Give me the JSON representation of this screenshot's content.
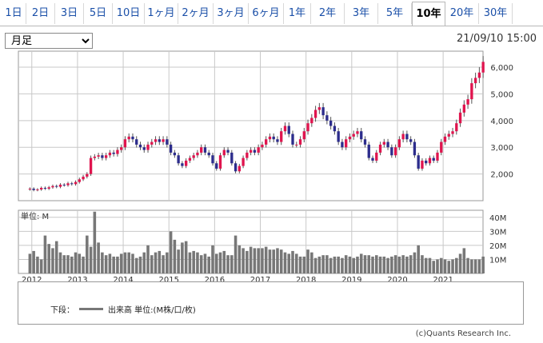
{
  "tabs": [
    "1日",
    "2日",
    "3日",
    "5日",
    "10日",
    "1ヶ月",
    "2ヶ月",
    "3ヶ月",
    "6ヶ月",
    "1年",
    "2年",
    "3年",
    "5年",
    "10年",
    "20年",
    "30年"
  ],
  "active_tab": "10年",
  "period_select": {
    "value": "月足",
    "options": [
      "月足"
    ]
  },
  "timestamp": "21/09/10 15:00",
  "colors": {
    "up": "#e0144e",
    "down": "#2c2c8c",
    "volume": "#777777",
    "grid": "#c8c8c8"
  },
  "legend": {
    "prefix": "下段：",
    "label": "出来高 単位:(M株/口/枚)"
  },
  "copyright": "(c)Quants Research Inc.",
  "chart_data": [
    {
      "type": "candlestick",
      "interval": "monthly",
      "x_range": [
        "2011-12",
        "2021-09"
      ],
      "x_ticks": [
        "2012",
        "2013",
        "2014",
        "2015",
        "2016",
        "2017",
        "2018",
        "2019",
        "2020",
        "2021"
      ],
      "ylim": [
        1000,
        6600
      ],
      "y_ticks": [
        2000,
        3000,
        4000,
        5000,
        6000
      ],
      "y_tick_labels": [
        "2,000",
        "3,000",
        "4,000",
        "5,000",
        "6,000"
      ],
      "grid": true,
      "close": [
        1450,
        1400,
        1420,
        1480,
        1450,
        1500,
        1550,
        1520,
        1600,
        1580,
        1650,
        1620,
        1700,
        1800,
        1900,
        2000,
        2600,
        2650,
        2700,
        2600,
        2700,
        2800,
        2750,
        2900,
        3000,
        3300,
        3400,
        3300,
        3100,
        3000,
        2900,
        3100,
        3200,
        3300,
        3200,
        3300,
        3100,
        2800,
        2700,
        2400,
        2300,
        2500,
        2600,
        2700,
        2800,
        3000,
        2800,
        2700,
        2400,
        2200,
        2700,
        2900,
        2800,
        2400,
        2100,
        2300,
        2600,
        2800,
        2900,
        2800,
        3000,
        3100,
        3300,
        3400,
        3300,
        3200,
        3600,
        3800,
        3500,
        3100,
        3100,
        3300,
        3600,
        3900,
        4100,
        4400,
        4500,
        4200,
        4000,
        3800,
        3600,
        3200,
        3000,
        3300,
        3400,
        3500,
        3600,
        3300,
        3100,
        2600,
        2500,
        2800,
        3100,
        3200,
        3000,
        2700,
        3000,
        3300,
        3500,
        3300,
        3200,
        2700,
        2200,
        2500,
        2400,
        2600,
        2500,
        2800,
        3200,
        3400,
        3500,
        3600,
        3900,
        4300,
        4600,
        4800,
        5400,
        5600,
        5800,
        6200
      ],
      "volume_panel": {
        "unit_label": "単位: M",
        "ylim": [
          0,
          45
        ],
        "y_ticks": [
          10,
          20,
          30,
          40
        ],
        "y_tick_labels": [
          "10M",
          "20M",
          "30M",
          "40M"
        ],
        "values": [
          14,
          16,
          12,
          10,
          27,
          21,
          18,
          23,
          15,
          13,
          13,
          12,
          15,
          14,
          12,
          27,
          19,
          44,
          22,
          15,
          13,
          14,
          12,
          12,
          14,
          15,
          15,
          14,
          11,
          12,
          15,
          20,
          13,
          15,
          16,
          13,
          15,
          30,
          24,
          17,
          22,
          23,
          15,
          16,
          15,
          13,
          14,
          12,
          20,
          14,
          15,
          16,
          13,
          13,
          27,
          20,
          18,
          16,
          19,
          18,
          18,
          18,
          19,
          17,
          17,
          18,
          17,
          15,
          14,
          16,
          14,
          12,
          12,
          17,
          15,
          11,
          12,
          13,
          13,
          11,
          12,
          12,
          11,
          13,
          12,
          11,
          12,
          14,
          13,
          13,
          12,
          13,
          12,
          12,
          11,
          12,
          13,
          12,
          13,
          12,
          13,
          15,
          20,
          13,
          11,
          11,
          9,
          10,
          11,
          10,
          9,
          10,
          11,
          14,
          18,
          11,
          10,
          10,
          10,
          12
        ]
      }
    }
  ]
}
